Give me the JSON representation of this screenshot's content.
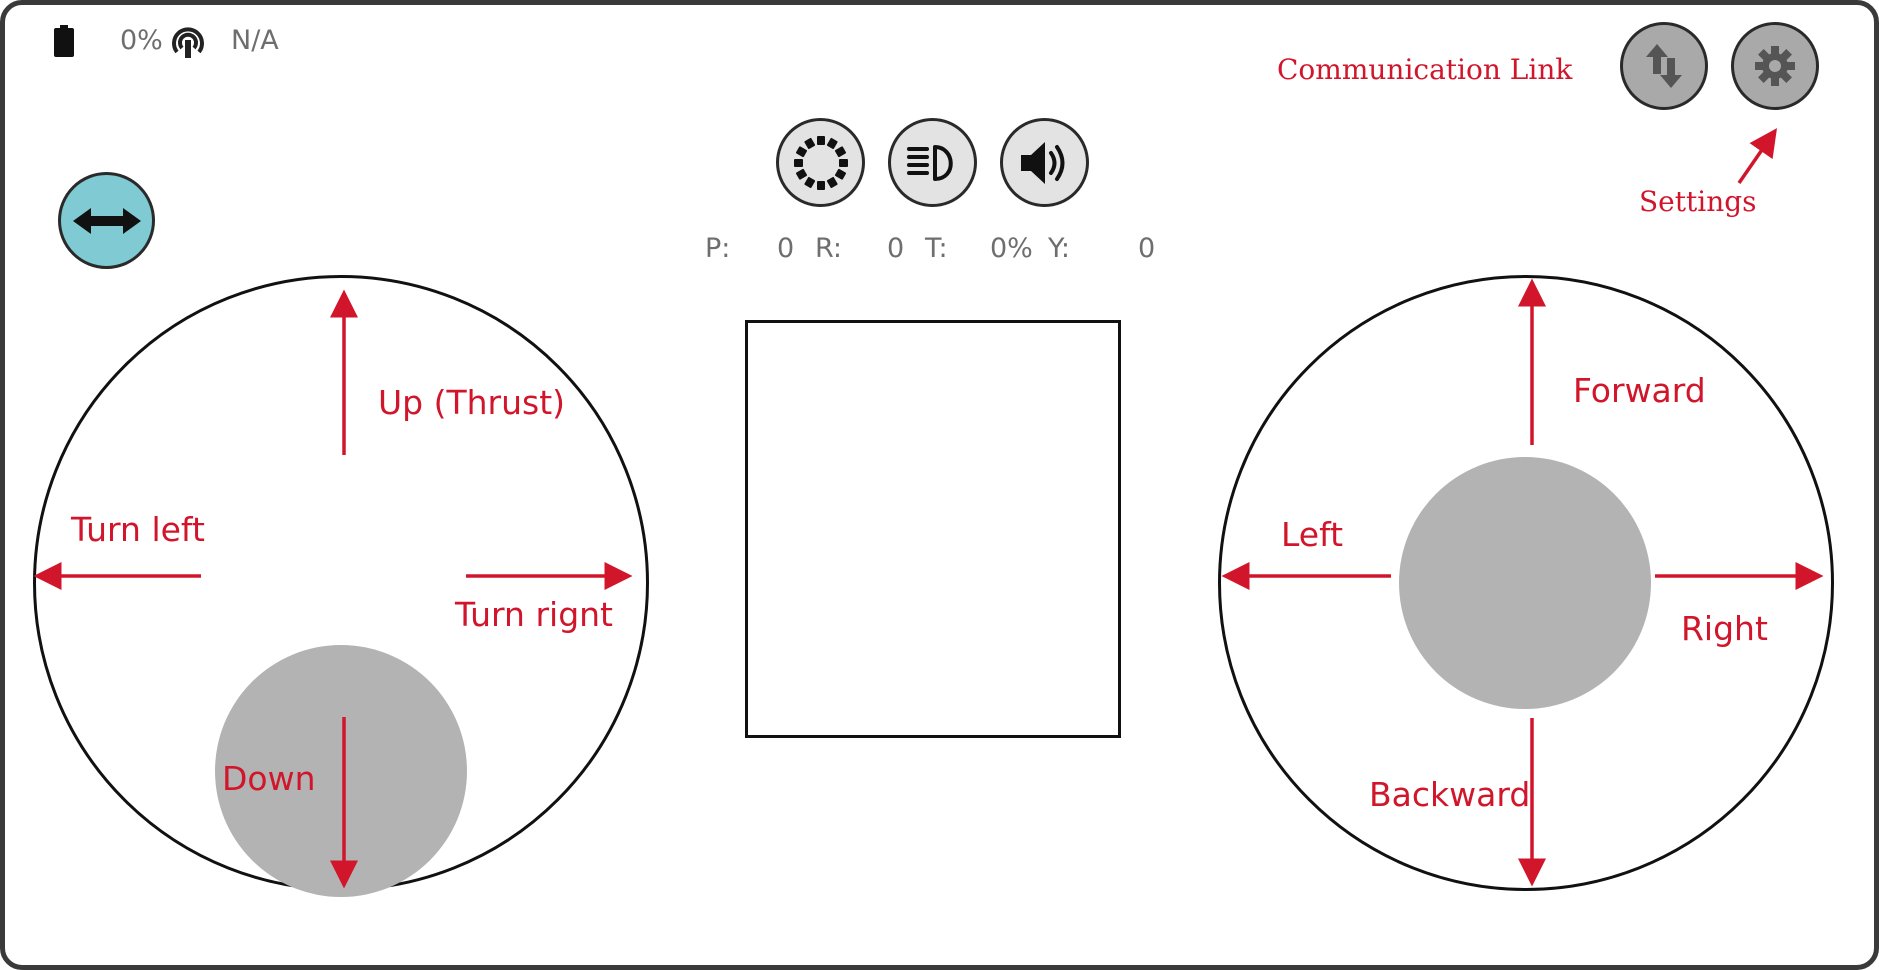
{
  "status_bar": {
    "battery_icon": "battery-icon",
    "battery_percent": "0%",
    "signal_icon": "signal-icon",
    "signal_status": "N/A"
  },
  "top_right": {
    "comm_link_icon": "swap-vertical-icon",
    "settings_icon": "gear-icon"
  },
  "center_controls": {
    "buttons": [
      "loading-ring-icon",
      "headlight-icon",
      "speaker-icon"
    ]
  },
  "telemetry": {
    "p_label": "P:",
    "p_value": "0",
    "r_label": "R:",
    "r_value": "0",
    "t_label": "T:",
    "t_value": "0%",
    "y_label": "Y:",
    "y_value": "0"
  },
  "left_joystick": {
    "up_label": "Up (Thrust)",
    "down_label": "Down",
    "left_label": "Turn left",
    "right_label": "Turn rignt"
  },
  "right_joystick": {
    "forward_label": "Forward",
    "backward_label": "Backward",
    "left_label": "Left",
    "right_label": "Right"
  },
  "annotations": {
    "comm_link": "Communication Link",
    "settings": "Settings"
  },
  "colors": {
    "annotation_red": "#d1162b",
    "mode_button_teal": "#7fcad3",
    "knob_grey": "#b3b3b3",
    "top_button_grey": "#a9a9a9"
  }
}
